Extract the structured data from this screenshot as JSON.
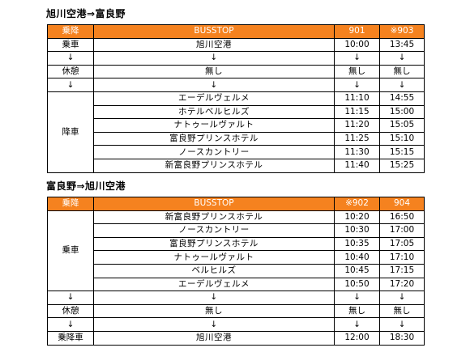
{
  "section1": {
    "title": "旭川空港⇒富良野",
    "header": {
      "col1": "乗降",
      "col2": "BUSSTOP",
      "col3": "901",
      "col4": "※903"
    },
    "rows": [
      {
        "label": "乗車",
        "stop": "旭川空港",
        "t1": "10:00",
        "t2": "13:45"
      },
      {
        "label": "↓",
        "stop": "↓",
        "t1": "↓",
        "t2": "↓"
      },
      {
        "label": "休憩",
        "stop": "無し",
        "t1": "無し",
        "t2": "無し"
      },
      {
        "label": "↓",
        "stop": "↓",
        "t1": "↓",
        "t2": "↓"
      },
      {
        "label": "降車",
        "stop": "エーデルヴェルメ",
        "t1": "11:10",
        "t2": "14:55"
      },
      {
        "stop": "ホテルベルヒルズ",
        "t1": "11:15",
        "t2": "15:00"
      },
      {
        "stop": "ナトゥールヴァルト",
        "t1": "11:20",
        "t2": "15:05"
      },
      {
        "stop": "富良野プリンスホテル",
        "t1": "11:25",
        "t2": "15:10"
      },
      {
        "stop": "ノースカントリー",
        "t1": "11:30",
        "t2": "15:15"
      },
      {
        "stop": "新富良野プリンスホテル",
        "t1": "11:40",
        "t2": "15:25"
      }
    ]
  },
  "section2": {
    "title": "富良野⇒旭川空港",
    "header": {
      "col1": "乗降",
      "col2": "BUSSTOP",
      "col3": "※902",
      "col4": "904"
    },
    "rows": [
      {
        "label": "乗車",
        "stop": "新富良野プリンスホテル",
        "t1": "10:20",
        "t2": "16:50"
      },
      {
        "stop": "ノースカントリー",
        "t1": "10:30",
        "t2": "17:00"
      },
      {
        "stop": "富良野プリンスホテル",
        "t1": "10:35",
        "t2": "17:05"
      },
      {
        "stop": "ナトゥールヴァルト",
        "t1": "10:40",
        "t2": "17:10"
      },
      {
        "stop": "ベルヒルズ",
        "t1": "10:45",
        "t2": "17:15"
      },
      {
        "stop": "エーデルヴェルメ",
        "t1": "10:50",
        "t2": "17:20"
      },
      {
        "label": "↓",
        "stop": "↓",
        "t1": "↓",
        "t2": "↓"
      },
      {
        "label": "休憩",
        "stop": "無し",
        "t1": "無し",
        "t2": "無し"
      },
      {
        "label": "↓",
        "stop": "↓",
        "t1": "↓",
        "t2": "↓"
      },
      {
        "label": "乗降車",
        "stop": "旭川空港",
        "t1": "12:00",
        "t2": "18:30"
      }
    ]
  },
  "colors": {
    "header_bg": "#f5821f",
    "header_text": "#ffffff",
    "border": "#000000"
  }
}
